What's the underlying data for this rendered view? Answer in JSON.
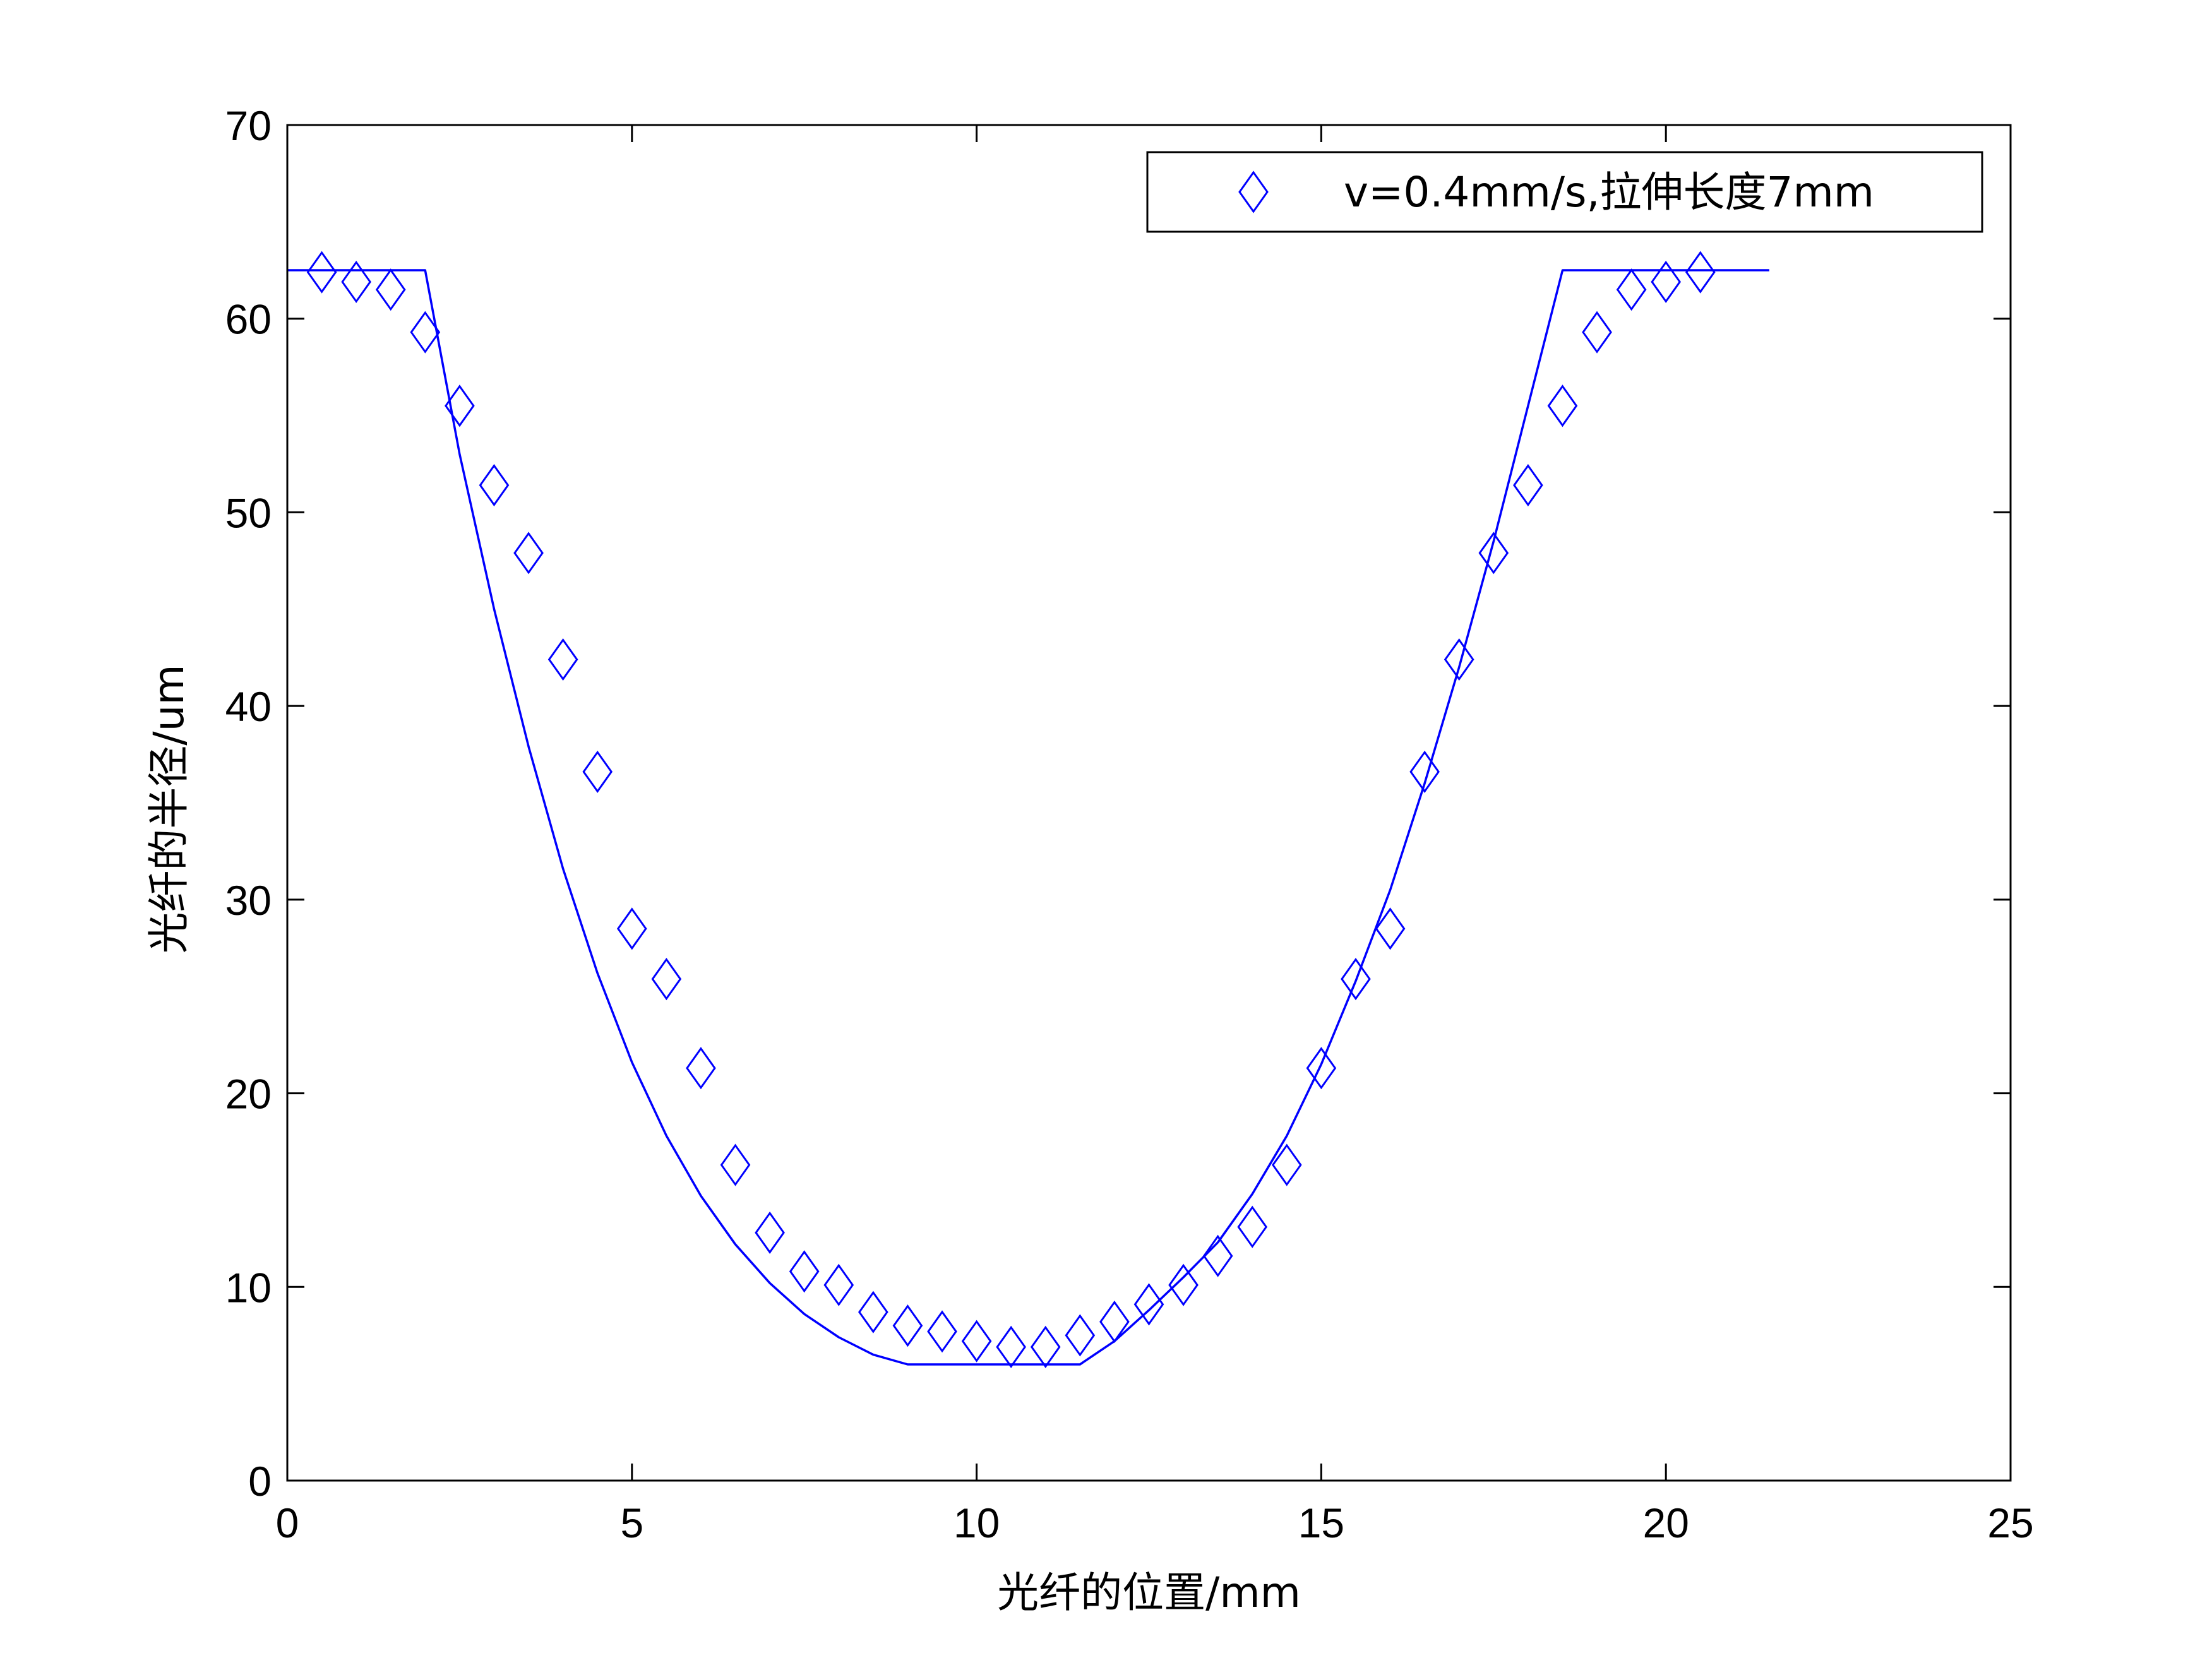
{
  "chart_data": {
    "type": "scatter",
    "xlabel": "光纤的位置/mm",
    "ylabel": "光纤的半径/um",
    "xlim": [
      0,
      25
    ],
    "ylim": [
      0,
      70
    ],
    "xticks": [
      0,
      5,
      10,
      15,
      20,
      25
    ],
    "yticks": [
      0,
      10,
      20,
      30,
      40,
      50,
      60,
      70
    ],
    "xtick_labels": [
      "0",
      "5",
      "10",
      "15",
      "20",
      "25"
    ],
    "ytick_labels": [
      "0",
      "10",
      "20",
      "30",
      "40",
      "50",
      "60",
      "70"
    ],
    "grid": false,
    "legend_position": "top-right",
    "series": [
      {
        "name": "v=0.4mm/s,拉伸长度7mm",
        "marker": "diamond",
        "color": "#0000ff",
        "x": [
          0.5,
          1.0,
          1.5,
          2.0,
          2.5,
          3.0,
          3.5,
          4.0,
          4.5,
          5.0,
          5.5,
          6.0,
          6.5,
          7.0,
          7.5,
          8.0,
          8.5,
          9.0,
          9.5,
          10.0,
          10.5,
          11.0,
          11.5,
          12.0,
          12.5,
          13.0,
          13.5,
          14.0,
          14.5,
          15.0,
          15.5,
          16.0,
          16.5,
          17.0,
          17.5,
          18.0,
          18.5,
          19.0,
          19.5,
          20.0,
          20.5
        ],
        "y": [
          62.4,
          61.9,
          61.5,
          59.3,
          55.5,
          51.4,
          47.9,
          42.4,
          36.6,
          28.5,
          25.9,
          21.3,
          16.3,
          12.8,
          10.8,
          10.1,
          8.7,
          8.0,
          7.7,
          7.2,
          6.9,
          6.9,
          7.5,
          8.2,
          9.1,
          10.1,
          11.6,
          13.1,
          16.3,
          21.3,
          25.9,
          28.5,
          36.6,
          42.4,
          47.9,
          51.4,
          55.5,
          59.3,
          61.5,
          61.9,
          62.4
        ]
      },
      {
        "marker": "none",
        "line": "solid",
        "color": "#0000ff",
        "x": [
          0,
          2.0,
          2.5,
          3.0,
          3.5,
          4.0,
          4.5,
          5.0,
          5.5,
          6.0,
          6.5,
          7.0,
          7.5,
          8.0,
          8.5,
          9.0,
          11.5,
          12.0,
          12.5,
          13.0,
          13.5,
          14.0,
          14.5,
          15.0,
          15.5,
          16.0,
          16.5,
          17.0,
          17.5,
          18.0,
          18.5,
          21.5
        ],
        "y": [
          62.5,
          62.5,
          53.0,
          45.0,
          37.9,
          31.6,
          26.2,
          21.6,
          17.8,
          14.7,
          12.2,
          10.2,
          8.6,
          7.4,
          6.5,
          6.0,
          6.0,
          7.2,
          8.8,
          10.5,
          12.3,
          14.8,
          17.8,
          21.5,
          25.8,
          30.5,
          36.0,
          42.0,
          48.5,
          55.5,
          62.5,
          62.5
        ]
      }
    ]
  }
}
